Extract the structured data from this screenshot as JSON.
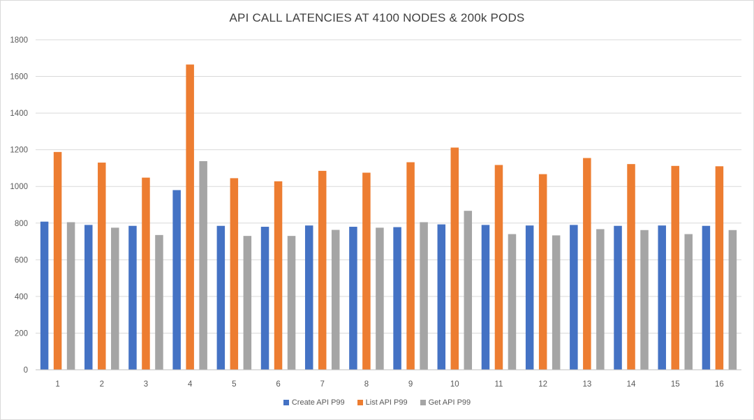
{
  "chart_data": {
    "type": "bar",
    "title": "API CALL LATENCIES AT 4100 NODES & 200k PODS",
    "xlabel": "",
    "ylabel": "",
    "ylim": [
      0,
      1800
    ],
    "yticks": [
      0,
      200,
      400,
      600,
      800,
      1000,
      1200,
      1400,
      1600,
      1800
    ],
    "categories": [
      "1",
      "2",
      "3",
      "4",
      "5",
      "6",
      "7",
      "8",
      "9",
      "10",
      "11",
      "12",
      "13",
      "14",
      "15",
      "16"
    ],
    "grid": true,
    "legend_position": "bottom",
    "series": [
      {
        "name": "Create API P99",
        "color": "#4472C4",
        "values": [
          808,
          790,
          785,
          980,
          785,
          780,
          787,
          780,
          778,
          793,
          790,
          787,
          790,
          785,
          787,
          785
        ]
      },
      {
        "name": "List API P99",
        "color": "#ED7D31",
        "values": [
          1188,
          1130,
          1048,
          1665,
          1045,
          1028,
          1085,
          1075,
          1132,
          1212,
          1117,
          1067,
          1155,
          1122,
          1112,
          1110
        ]
      },
      {
        "name": "Get API P99",
        "color": "#A5A5A5",
        "values": [
          805,
          775,
          735,
          1138,
          730,
          730,
          763,
          775,
          805,
          867,
          740,
          733,
          767,
          762,
          740,
          762
        ]
      }
    ]
  }
}
